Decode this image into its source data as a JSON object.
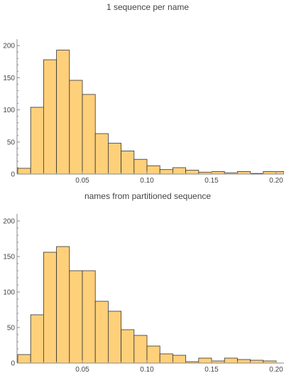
{
  "bar_color": "#FFD07A",
  "chart_data": [
    {
      "type": "bar",
      "title": "1 sequence per name",
      "xlim": [
        0.0,
        0.2
      ],
      "ylim": [
        0,
        210
      ],
      "bin_width": 0.01,
      "bin_starts": [
        0.0,
        0.01,
        0.02,
        0.03,
        0.04,
        0.05,
        0.06,
        0.07,
        0.08,
        0.09,
        0.1,
        0.11,
        0.12,
        0.13,
        0.14,
        0.15,
        0.16,
        0.17,
        0.18,
        0.19,
        0.2
      ],
      "values": [
        9,
        104,
        178,
        193,
        146,
        124,
        63,
        48,
        36,
        23,
        13,
        7,
        10,
        6,
        3,
        4,
        2,
        4,
        1,
        4,
        4
      ],
      "x_ticks": [
        0.05,
        0.1,
        0.15,
        0.2
      ],
      "x_tick_labels": [
        "0.05",
        "0.10",
        "0.15",
        "0.20"
      ],
      "y_ticks": [
        0,
        50,
        100,
        150,
        200
      ],
      "y_tick_labels": [
        "0",
        "50",
        "100",
        "150",
        "200"
      ]
    },
    {
      "type": "bar",
      "title": "names from partitioned sequence",
      "xlim": [
        0.0,
        0.2
      ],
      "ylim": [
        0,
        210
      ],
      "bin_width": 0.01,
      "bin_starts": [
        0.0,
        0.01,
        0.02,
        0.03,
        0.04,
        0.05,
        0.06,
        0.07,
        0.08,
        0.09,
        0.1,
        0.11,
        0.12,
        0.13,
        0.14,
        0.15,
        0.16,
        0.17,
        0.18,
        0.19
      ],
      "values": [
        12,
        68,
        156,
        164,
        130,
        130,
        87,
        73,
        47,
        39,
        24,
        13,
        11,
        2,
        7,
        3,
        7,
        5,
        4,
        3
      ],
      "x_ticks": [
        0.05,
        0.1,
        0.15,
        0.2
      ],
      "x_tick_labels": [
        "0.05",
        "0.10",
        "0.15",
        "0.20"
      ],
      "y_ticks": [
        0,
        50,
        100,
        150,
        200
      ],
      "y_tick_labels": [
        "0",
        "50",
        "100",
        "150",
        "200"
      ]
    }
  ]
}
